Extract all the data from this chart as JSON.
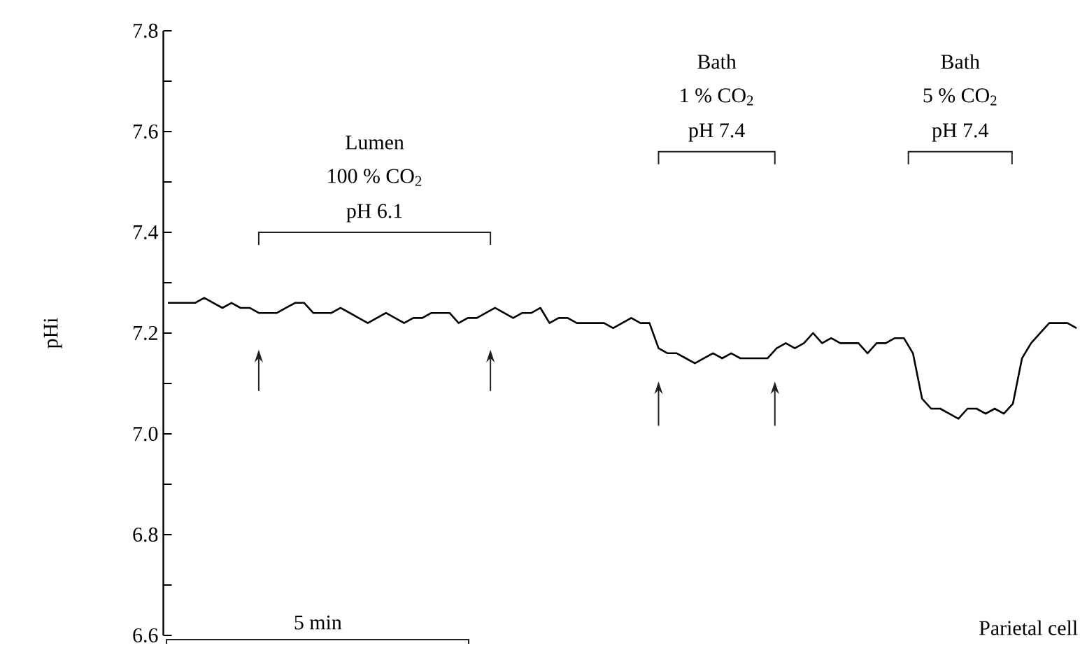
{
  "chart_data": {
    "type": "line",
    "ylabel": "pHi",
    "categories": [
      null,
      null,
      null,
      null,
      null,
      null,
      null,
      null,
      null,
      null,
      null,
      null,
      null,
      null,
      null,
      null,
      null,
      null,
      null,
      null,
      null,
      null,
      null,
      null,
      null,
      null,
      null,
      null,
      null,
      null,
      null,
      null,
      null,
      null,
      null,
      null,
      null,
      null,
      null,
      null,
      null,
      null,
      null,
      null,
      null,
      null,
      null,
      null,
      null,
      null,
      null,
      null,
      null,
      null,
      null,
      null,
      null,
      null,
      null,
      null,
      null,
      null,
      null,
      null,
      null,
      null,
      null,
      null,
      null,
      null,
      null,
      null,
      null,
      null,
      null,
      null,
      null,
      null,
      null,
      null,
      null,
      null,
      null,
      null,
      null,
      null,
      null,
      null,
      null,
      null,
      null,
      null,
      null,
      null,
      null,
      null,
      null,
      null,
      null,
      null,
      null
    ],
    "series": [
      {
        "color": "#000000",
        "values": [
          7.26,
          7.26,
          7.26,
          7.26,
          7.27,
          7.26,
          7.25,
          7.26,
          7.25,
          7.25,
          7.24,
          7.24,
          7.24,
          7.25,
          7.26,
          7.26,
          7.24,
          7.24,
          7.24,
          7.25,
          7.24,
          7.23,
          7.22,
          7.23,
          7.24,
          7.23,
          7.22,
          7.23,
          7.23,
          7.24,
          7.24,
          7.24,
          7.22,
          7.23,
          7.23,
          7.24,
          7.25,
          7.24,
          7.23,
          7.24,
          7.24,
          7.25,
          7.22,
          7.23,
          7.23,
          7.22,
          7.22,
          7.22,
          7.22,
          7.21,
          7.22,
          7.23,
          7.22,
          7.22,
          7.17,
          7.16,
          7.16,
          7.15,
          7.14,
          7.15,
          7.16,
          7.15,
          7.16,
          7.15,
          7.15,
          7.15,
          7.15,
          7.17,
          7.18,
          7.17,
          7.18,
          7.2,
          7.18,
          7.19,
          7.18,
          7.18,
          7.18,
          7.16,
          7.18,
          7.18,
          7.19,
          7.19,
          7.16,
          7.07,
          7.05,
          7.05,
          7.04,
          7.03,
          7.05,
          7.05,
          7.04,
          7.05,
          7.04,
          7.06,
          7.15,
          7.18,
          7.2,
          7.22,
          7.22,
          7.22,
          7.21
        ]
      }
    ],
    "ylim": [
      6.6,
      7.8
    ],
    "yticks": [
      6.6,
      {
        "value": 6.7,
        "label": null
      },
      6.8,
      {
        "value": 6.9,
        "label": null
      },
      {
        "value": 7.0,
        "label": "7.0"
      },
      {
        "value": 7.1,
        "label": null
      },
      7.2,
      {
        "value": 7.3,
        "label": null
      },
      7.4,
      {
        "value": 7.5,
        "label": null
      },
      7.6,
      {
        "value": 7.7,
        "label": null
      },
      7.8
    ],
    "tick_labels": "y",
    "grid": false,
    "annotations": [
      "Lumen",
      "100 % CO$_{2}$",
      "pH 6.1",
      "Bath",
      "1 % CO$_{2}$",
      "pH 7.4",
      "Bath",
      "5 % CO$_{2}$",
      "pH 7.4",
      "5 min",
      "Parietal cell"
    ]
  }
}
